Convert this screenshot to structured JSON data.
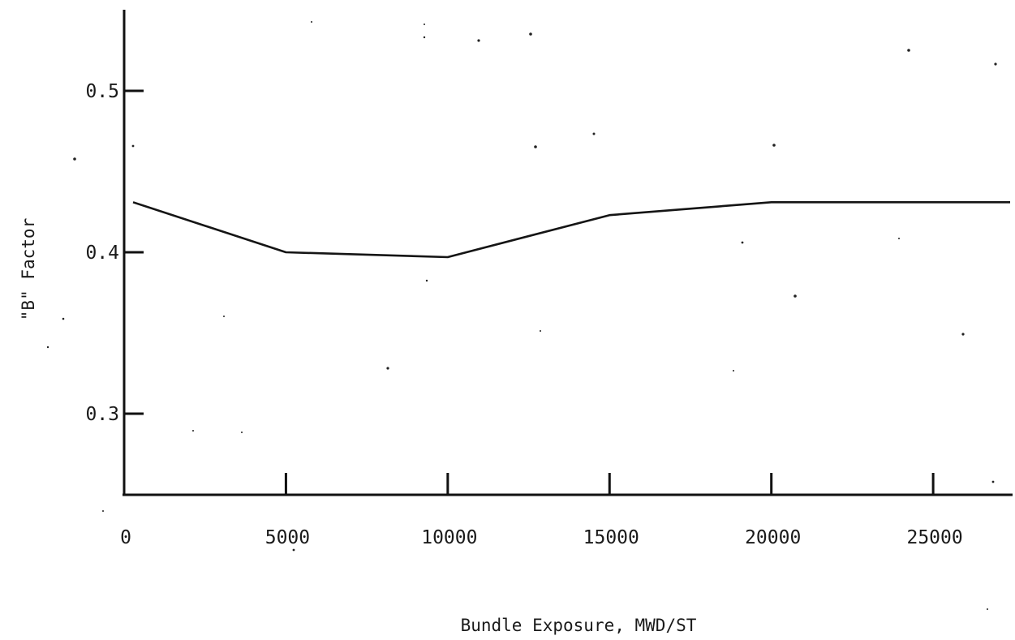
{
  "chart_data": {
    "type": "line",
    "title": "",
    "xlabel": "Bundle Exposure, MWD/ST",
    "ylabel": "\"B\" Factor",
    "xlim": [
      0,
      27500
    ],
    "ylim": [
      0.25,
      0.55
    ],
    "x_ticks": [
      0,
      5000,
      10000,
      15000,
      20000,
      25000
    ],
    "x_tick_labels": [
      "0",
      "5000",
      "10000",
      "15000",
      "20000",
      "25000"
    ],
    "y_ticks": [
      0.3,
      0.4,
      0.5
    ],
    "y_tick_labels": [
      "0.3",
      "0.4",
      "0.5"
    ],
    "grid": false,
    "legend": "none",
    "series": [
      {
        "x": [
          0,
          5000,
          10000,
          15000,
          20000,
          27500
        ],
        "y": [
          0.431,
          0.4,
          0.397,
          0.423,
          0.431,
          0.431
        ]
      }
    ]
  }
}
